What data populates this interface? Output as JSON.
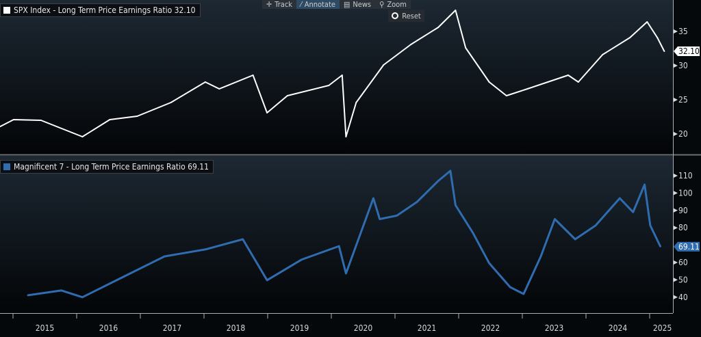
{
  "toolbar": {
    "track": "Track",
    "annotate": "Annotate",
    "news": "News",
    "zoom": "Zoom",
    "reset": "Reset"
  },
  "colors": {
    "spx": "#ffffff",
    "mag7": "#2f6db0",
    "bg_top": "#1d2833",
    "bg_bottom": "#030507"
  },
  "chart_data": [
    {
      "type": "line",
      "title": "SPX Index - Long Term Price Earnings Ratio 32.10",
      "series_name": "SPX Index - Long Term Price Earnings Ratio",
      "last_value_label": "32.10",
      "last_value": 32.1,
      "ylim": [
        17,
        39
      ],
      "yticks": [
        "20",
        "25",
        "30",
        "35"
      ],
      "ytick_values": [
        20,
        25,
        30,
        35
      ],
      "x": [
        2014.8,
        2015.01,
        2015.44,
        2015.71,
        2016.09,
        2016.52,
        2016.95,
        2017.48,
        2018.02,
        2018.24,
        2018.77,
        2018.99,
        2019.31,
        2019.96,
        2020.17,
        2020.23,
        2020.39,
        2020.82,
        2021.25,
        2021.68,
        2021.95,
        2022.11,
        2022.48,
        2022.75,
        2023.08,
        2023.4,
        2023.72,
        2023.88,
        2024.26,
        2024.69,
        2024.96,
        2025.12,
        2025.23
      ],
      "y": [
        21.1,
        22.1,
        22.0,
        21.0,
        19.6,
        22.1,
        22.6,
        24.6,
        27.6,
        26.6,
        28.6,
        23.1,
        25.6,
        27.1,
        28.6,
        19.6,
        24.6,
        30.1,
        33.1,
        35.6,
        38.1,
        32.6,
        27.6,
        25.6,
        26.6,
        27.6,
        28.6,
        27.6,
        31.6,
        34.1,
        36.4,
        34.1,
        32.1
      ]
    },
    {
      "type": "line",
      "title": "Magnificent 7 - Long Term Price Earnings Ratio 69.11",
      "series_name": "Magnificent 7 - Long Term Price Earnings Ratio",
      "last_value_label": "69.11",
      "last_value": 69.11,
      "ylim": [
        33,
        119
      ],
      "yticks": [
        "40",
        "50",
        "60",
        "80",
        "90",
        "100",
        "110"
      ],
      "ytick_values": [
        40,
        50,
        60,
        80,
        90,
        100,
        110
      ],
      "x": [
        2015.23,
        2015.76,
        2016.09,
        2016.73,
        2017.38,
        2018.02,
        2018.61,
        2018.99,
        2019.53,
        2020.12,
        2020.23,
        2020.66,
        2020.76,
        2021.03,
        2021.35,
        2021.68,
        2021.87,
        2021.95,
        2022.22,
        2022.48,
        2022.81,
        2023.02,
        2023.29,
        2023.51,
        2023.83,
        2024.15,
        2024.53,
        2024.74,
        2024.92,
        2025.01,
        2025.17
      ],
      "y": [
        41.1,
        43.9,
        40.0,
        51.7,
        63.5,
        67.5,
        73.4,
        49.8,
        61.6,
        69.4,
        53.7,
        97.0,
        85.0,
        87.0,
        95.0,
        107.0,
        112.8,
        93.0,
        77.3,
        59.6,
        45.8,
        41.9,
        63.5,
        85.0,
        73.4,
        81.3,
        97.0,
        89.0,
        104.9,
        81.3,
        69.1
      ]
    }
  ],
  "xaxis": {
    "labels": [
      "2015",
      "2016",
      "2017",
      "2018",
      "2019",
      "2020",
      "2021",
      "2022",
      "2023",
      "2024",
      "2025"
    ],
    "label_years": [
      2015.5,
      2016.5,
      2017.5,
      2018.5,
      2019.5,
      2020.5,
      2021.5,
      2022.5,
      2023.5,
      2024.5,
      2025.2
    ]
  }
}
